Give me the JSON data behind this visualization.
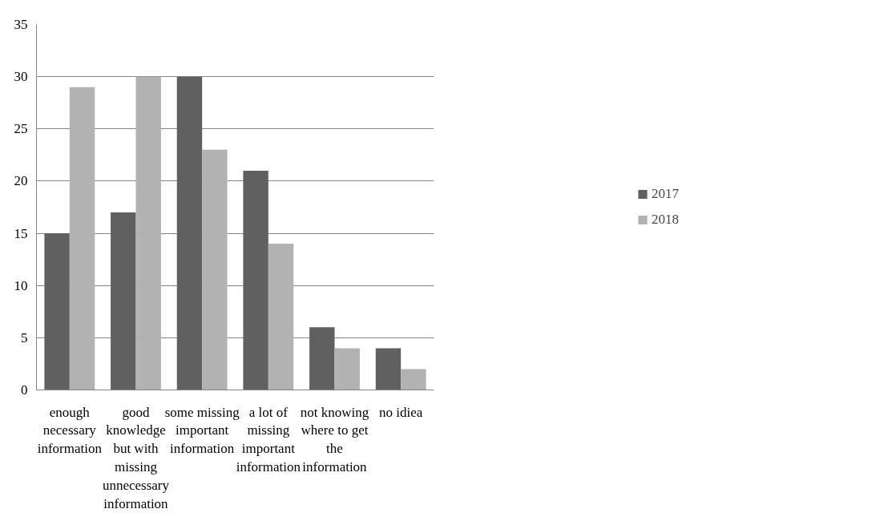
{
  "chart_data": {
    "type": "bar",
    "categories": [
      "enough necessary information",
      "good knowledge but with missing unnecessary information",
      "some missing important information",
      "a lot of missing important information",
      "not knowing where to get the information",
      "no idiea"
    ],
    "series": [
      {
        "name": "2017",
        "color": "#606060",
        "values": [
          15,
          17,
          30,
          21,
          6,
          4
        ]
      },
      {
        "name": "2018",
        "color": "#b2b2b2",
        "values": [
          29,
          30,
          23,
          14,
          4,
          2
        ]
      }
    ],
    "ylim": [
      0,
      35
    ],
    "yticks": [
      0,
      5,
      10,
      15,
      20,
      25,
      30,
      35
    ],
    "grid": "y",
    "legend": "right"
  }
}
